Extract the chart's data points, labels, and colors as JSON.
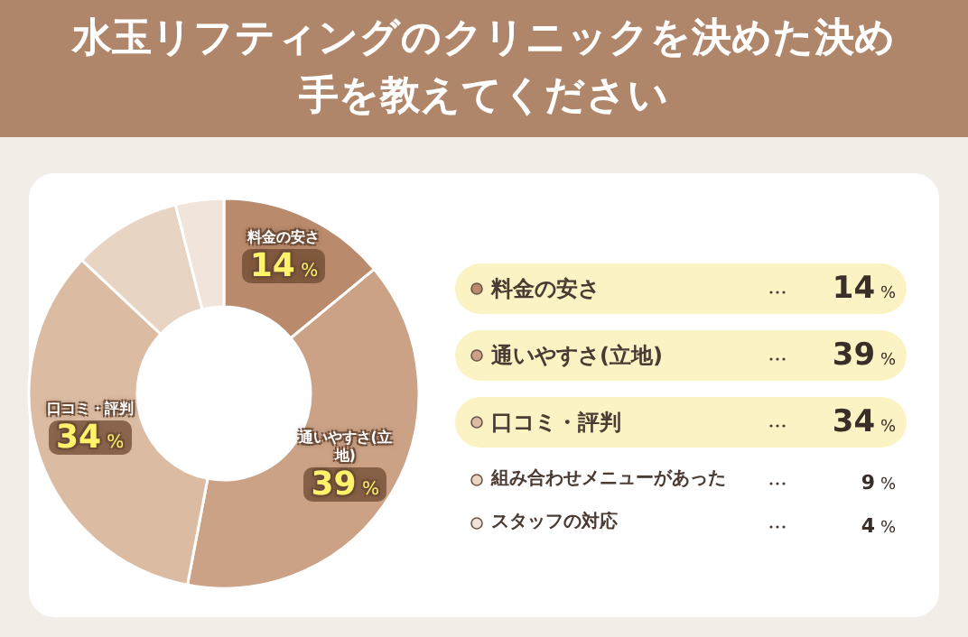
{
  "chart_data": {
    "type": "donut",
    "title": "水玉リフティングのクリニックを決めた決め手を教えてください",
    "categories": [
      "料金の安さ",
      "通いやすさ(立地)",
      "口コミ・評判",
      "組み合わせメニューがあった",
      "スタッフの対応"
    ],
    "values": [
      14,
      39,
      34,
      9,
      4
    ],
    "value_labels": [
      "14 %",
      "39 %",
      "34 %",
      "9 %",
      "4 %"
    ],
    "colors": [
      "#b98a6c",
      "#cba286",
      "#dbbca3",
      "#e8d4c3",
      "#f1e5db"
    ],
    "legend": "right"
  }
}
